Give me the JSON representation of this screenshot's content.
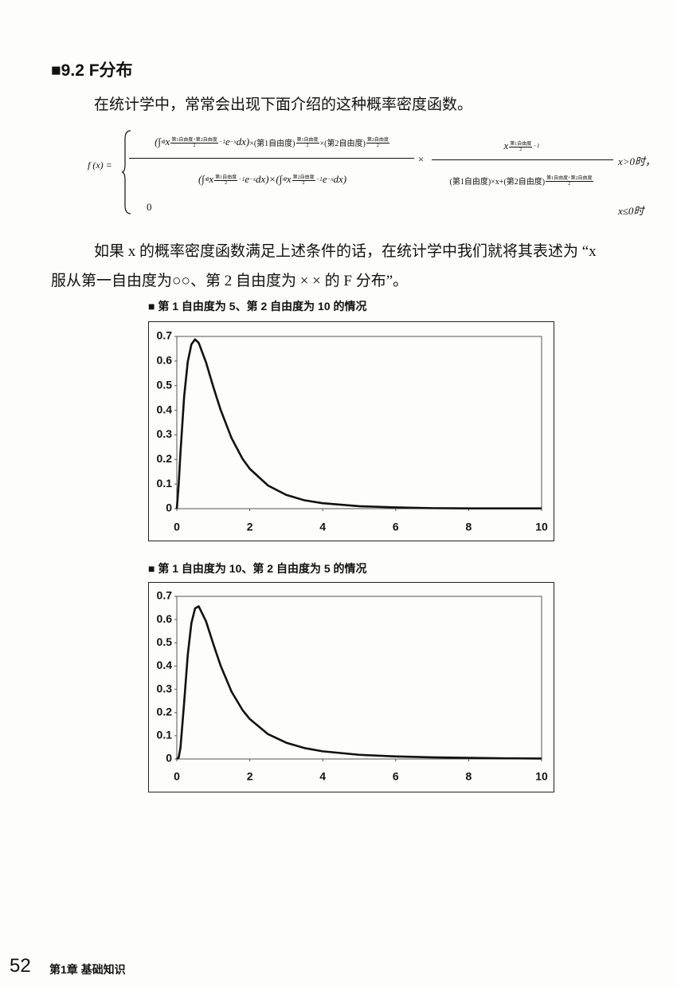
{
  "header": {
    "title": "■9.2  F分布"
  },
  "paragraph1": "在统计学中，常常会出现下面介绍的这种概率密度函数。",
  "formula": {
    "lhs": "f (x) =",
    "numerator": [
      "(∫",
      "∞",
      "0",
      "x",
      "第1自由度+第2自由度",
      "2",
      "−1",
      "e",
      "−x",
      "dx)",
      "×(第1自由度)",
      "第1自由度",
      "2",
      "×(第2自由度)",
      "第2自由度",
      "2"
    ],
    "denominator": [
      "(∫",
      "∞",
      "0",
      "x",
      "第1自由度",
      "2",
      "−1",
      "e",
      "−x",
      "dx)",
      "×",
      "(∫",
      "∞",
      "0",
      "x",
      "第2自由度",
      "2",
      "−1",
      "e",
      "−x",
      "dx)"
    ],
    "times": "×",
    "right_numerator": [
      "x",
      "第1自由度",
      "2",
      "−1"
    ],
    "right_denominator": [
      "(第1自由度)×x+(第2自由度)",
      "第1自由度+第2自由度",
      "2"
    ],
    "cond1": "x>0时，",
    "zero": "0",
    "cond2": "x≤0时"
  },
  "paragraph2": [
    "如果 x 的概率密度函数满足上述条件的话，在统计学中我们就将其表述为 “x",
    "服从第一自由度为○○、第 2 自由度为 × × 的 F 分布”。"
  ],
  "chart_data": [
    {
      "type": "line",
      "title": "■ 第 1 自由度为 5、第 2 自由度为 10 的情况",
      "color": "#111111",
      "x": [
        0,
        0.05,
        0.1,
        0.2,
        0.3,
        0.4,
        0.5,
        0.6,
        0.8,
        1,
        1.2,
        1.5,
        1.8,
        2,
        2.5,
        3,
        3.5,
        4,
        5,
        6,
        7,
        8,
        9,
        10
      ],
      "values": [
        0,
        0.096,
        0.227,
        0.454,
        0.597,
        0.668,
        0.688,
        0.674,
        0.595,
        0.495,
        0.402,
        0.287,
        0.203,
        0.162,
        0.094,
        0.056,
        0.034,
        0.022,
        0.01,
        0.005,
        0.002,
        0.001,
        0.001,
        0.001
      ],
      "xlim": [
        0,
        10
      ],
      "xticks": [
        0,
        2,
        4,
        6,
        8,
        10
      ],
      "ylim": [
        0,
        0.7
      ],
      "yticks": [
        0,
        0.1,
        0.2,
        0.3,
        0.4,
        0.5,
        0.6,
        0.7
      ],
      "grid": false
    },
    {
      "type": "line",
      "title": "■ 第 1 自由度为 10、第 2 自由度为 5 的情况",
      "color": "#111111",
      "x": [
        0,
        0.05,
        0.1,
        0.2,
        0.3,
        0.4,
        0.5,
        0.6,
        0.8,
        1,
        1.2,
        1.5,
        1.8,
        2,
        2.5,
        3,
        3.5,
        4,
        5,
        6,
        7,
        8,
        9,
        10
      ],
      "values": [
        0,
        0.006,
        0.048,
        0.241,
        0.448,
        0.585,
        0.648,
        0.657,
        0.593,
        0.495,
        0.402,
        0.29,
        0.211,
        0.172,
        0.107,
        0.07,
        0.047,
        0.033,
        0.018,
        0.011,
        0.007,
        0.005,
        0.003,
        0.002
      ],
      "xlim": [
        0,
        10
      ],
      "xticks": [
        0,
        2,
        4,
        6,
        8,
        10
      ],
      "ylim": [
        0,
        0.7
      ],
      "yticks": [
        0,
        0.1,
        0.2,
        0.3,
        0.4,
        0.5,
        0.6,
        0.7
      ],
      "grid": false
    }
  ],
  "footer": {
    "page_number": "52",
    "chapter": "第1章  基础知识"
  }
}
